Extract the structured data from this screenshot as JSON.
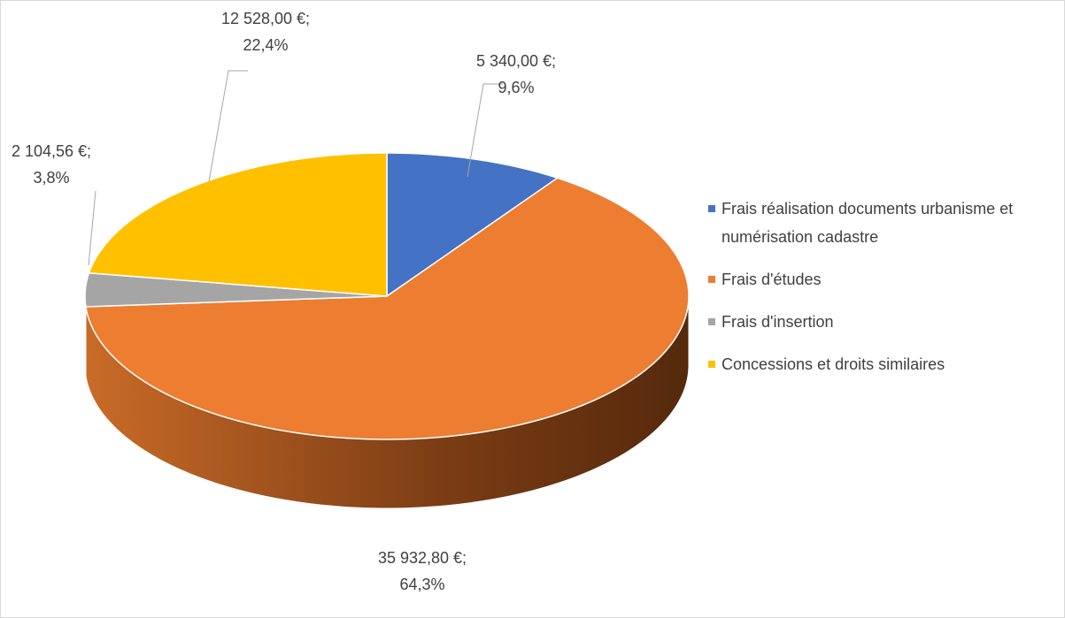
{
  "chart_data": {
    "type": "pie3d",
    "categories": [
      "Frais réalisation documents urbanisme et numérisation cadastre",
      "Frais d'études",
      "Frais d'insertion",
      "Concessions et droits similaires"
    ],
    "values": [
      5340.0,
      35932.8,
      2104.56,
      12528.0
    ],
    "value_labels": [
      "5 340,00 €;",
      "35 932,80 €;",
      "2 104,56 €;",
      "12 528,00 €;"
    ],
    "percent_labels": [
      "9,6%",
      "64,3%",
      "3,8%",
      "22,4%"
    ],
    "colors": [
      "#4472c4",
      "#ed7d31",
      "#a5a5a5",
      "#ffc000"
    ],
    "legend": "right"
  }
}
